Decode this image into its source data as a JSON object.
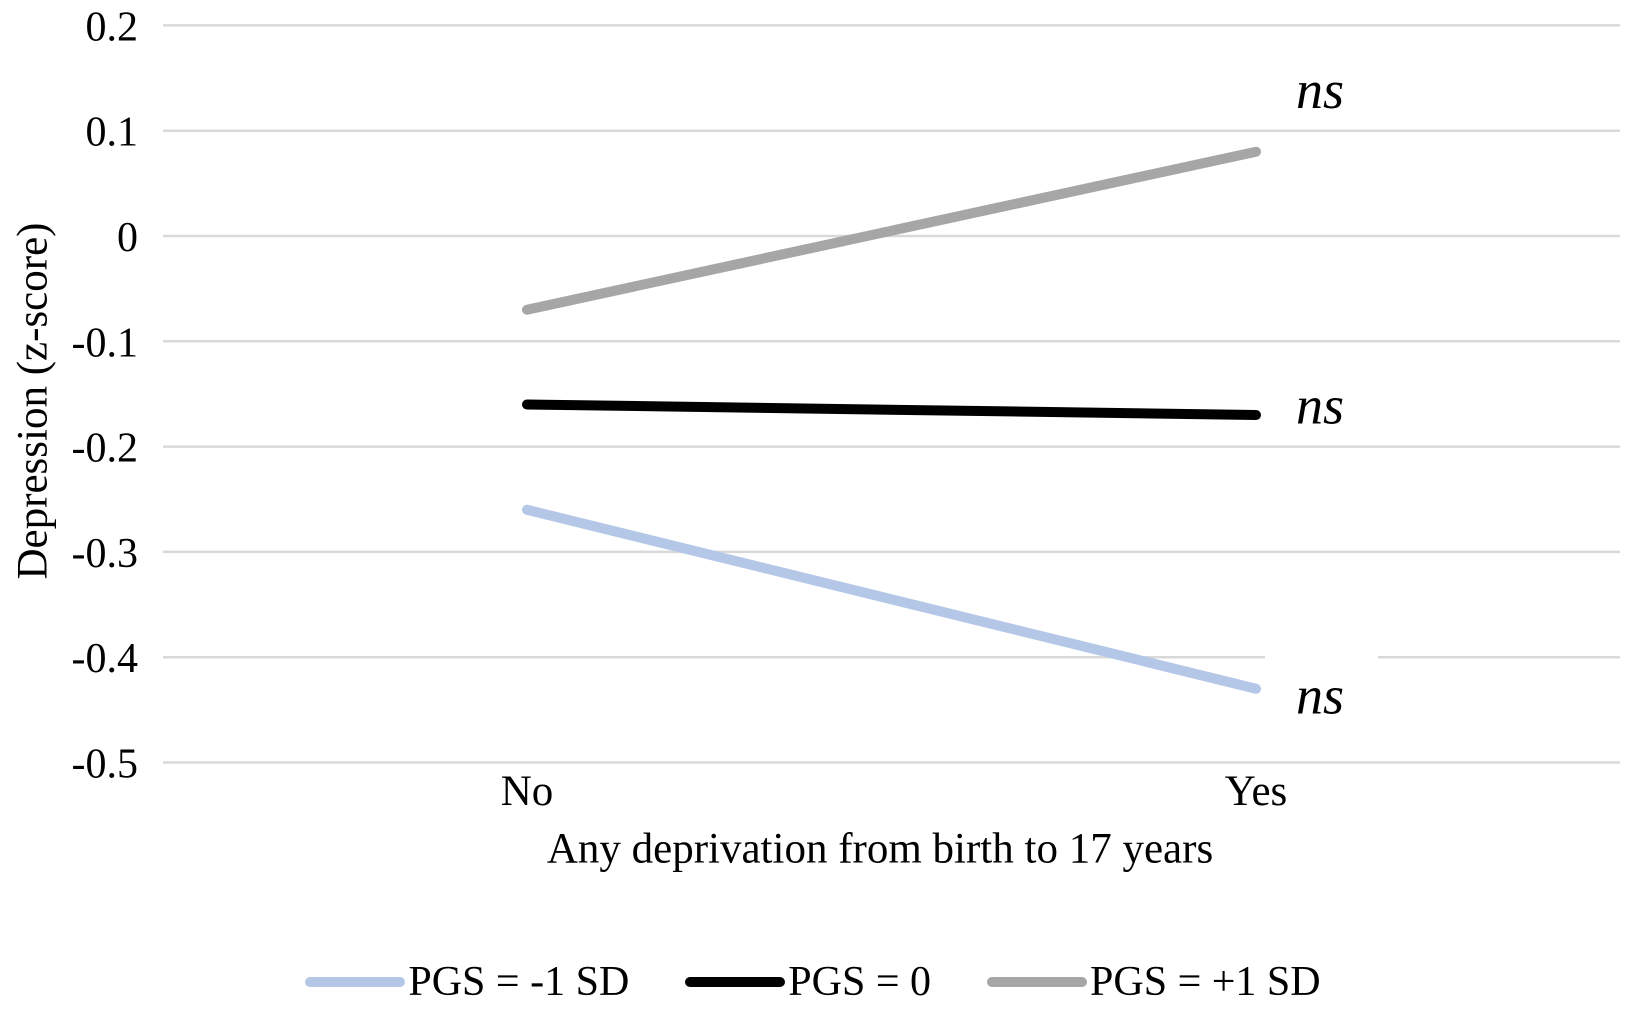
{
  "chart_data": {
    "type": "line",
    "title": "",
    "xlabel": "Any deprivation from birth to 17 years",
    "ylabel": "Depression (z-score)",
    "categories": [
      "No",
      "Yes"
    ],
    "ylim": [
      -0.5,
      0.2
    ],
    "yticks": [
      0.2,
      0.1,
      0,
      -0.1,
      -0.2,
      -0.3,
      -0.4,
      -0.5
    ],
    "ytick_labels": [
      "0.2",
      "0.1",
      "0",
      "-0.1",
      "-0.2",
      "-0.3",
      "-0.4",
      "-0.5"
    ],
    "grid": "horizontal-only",
    "legend_position": "bottom",
    "series": [
      {
        "name": "PGS = -1 SD",
        "color": "#b4c7e7",
        "values": [
          -0.26,
          -0.43
        ]
      },
      {
        "name": "PGS = 0",
        "color": "#000000",
        "values": [
          -0.16,
          -0.17
        ]
      },
      {
        "name": "PGS = +1 SD",
        "color": "#a6a6a6",
        "values": [
          -0.07,
          0.08
        ]
      }
    ],
    "annotations": [
      {
        "text": "ns",
        "series": "PGS = +1 SD",
        "y_value": 0.135
      },
      {
        "text": "ns",
        "series": "PGS = 0",
        "y_value": -0.165
      },
      {
        "text": "ns",
        "series": "PGS = -1 SD",
        "y_value": -0.44
      }
    ],
    "colors": {
      "gridline": "#d9d9d9",
      "text": "#000000",
      "background": "#ffffff"
    }
  }
}
